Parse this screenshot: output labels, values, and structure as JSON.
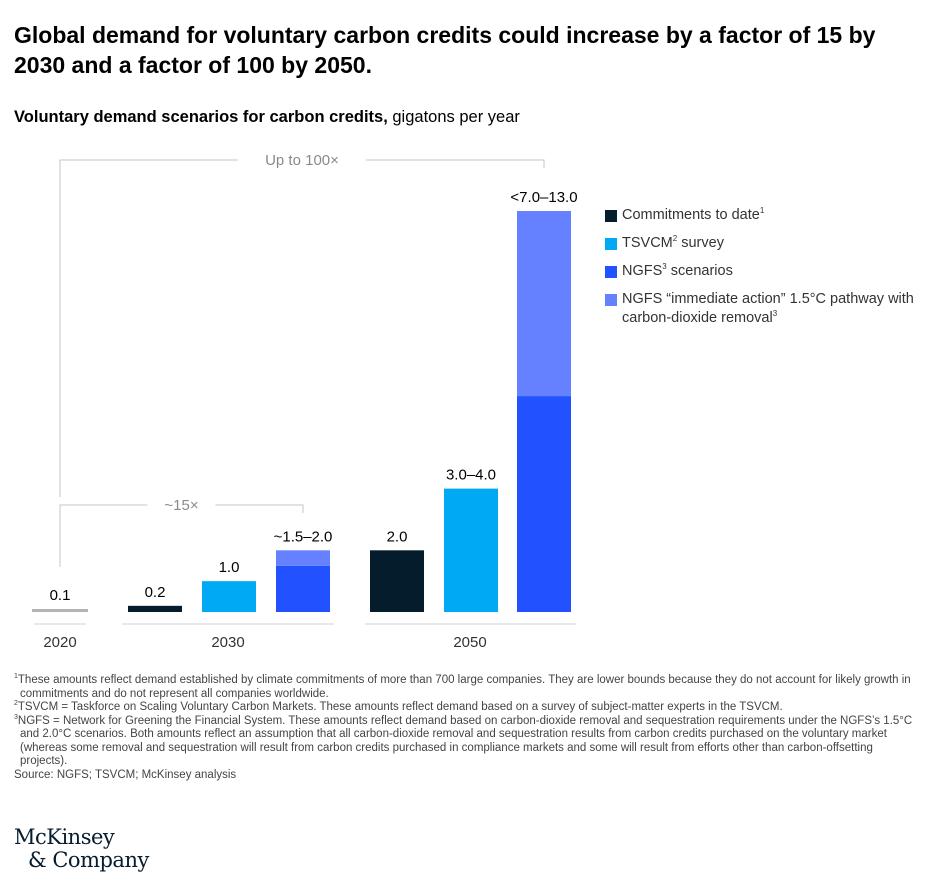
{
  "headline": "Global demand for voluntary carbon credits could increase by a factor of 15 by 2030 and a factor of 100 by 2050.",
  "subtitle": {
    "bold": "Voluntary demand scenarios for carbon credits,",
    "unit": " gigatons per year"
  },
  "chart_data": {
    "type": "bar",
    "stacked": true,
    "ylim": [
      0,
      13
    ],
    "categories": [
      "2020",
      "2030",
      "2050"
    ],
    "groups": [
      {
        "year": "2020",
        "bars": [
          {
            "series": "baseline",
            "label": "0.1",
            "segments": [
              {
                "series": "baseline",
                "value": 0.1
              }
            ]
          }
        ]
      },
      {
        "year": "2030",
        "bars": [
          {
            "series": "commitments",
            "label": "0.2",
            "segments": [
              {
                "series": "commitments",
                "value": 0.2
              }
            ]
          },
          {
            "series": "tsvcm",
            "label": "1.0",
            "segments": [
              {
                "series": "tsvcm",
                "value": 1.0
              }
            ]
          },
          {
            "series": "ngfs",
            "label": "~1.5–2.0",
            "segments": [
              {
                "series": "ngfs",
                "value": 1.5
              },
              {
                "series": "ngfs_immediate",
                "value": 0.5
              }
            ]
          }
        ]
      },
      {
        "year": "2050",
        "bars": [
          {
            "series": "commitments",
            "label": "2.0",
            "segments": [
              {
                "series": "commitments",
                "value": 2.0
              }
            ]
          },
          {
            "series": "tsvcm",
            "label": "3.0–4.0",
            "segments": [
              {
                "series": "tsvcm",
                "value": 4.0
              }
            ]
          },
          {
            "series": "ngfs",
            "label": "<7.0–13.0",
            "segments": [
              {
                "series": "ngfs",
                "value": 7.0
              },
              {
                "series": "ngfs_immediate",
                "value": 6.0
              }
            ]
          }
        ]
      }
    ],
    "colors": {
      "baseline": "#b3b3b3",
      "commitments": "#051c2c",
      "tsvcm": "#00a9f4",
      "ngfs": "#2251ff",
      "ngfs_immediate": "#6581ff"
    },
    "annotations": [
      {
        "label": "Up to 100×",
        "from": "2020",
        "to": "2050"
      },
      {
        "label": "~15×",
        "from": "2020",
        "to": "2030"
      }
    ],
    "legend": [
      {
        "series": "commitments",
        "text": "Commitments to date",
        "sup": "1"
      },
      {
        "series": "tsvcm",
        "text": "TSVCM",
        "sup": "2",
        "after": " survey"
      },
      {
        "series": "ngfs",
        "text": "NGFS",
        "sup": "3",
        "after": " scenarios"
      },
      {
        "series": "ngfs_immediate",
        "text": "NGFS “immediate action” 1.5°C pathway with carbon-dioxide removal",
        "sup": "3"
      }
    ]
  },
  "footnotes": [
    {
      "sup": "1",
      "text": "These amounts reflect demand established by climate commitments of more than 700 large companies. They are lower bounds because they do not account for likely growth in commitments and do not represent all companies worldwide."
    },
    {
      "sup": "2",
      "text": "TSVCM = Taskforce on Scaling Voluntary Carbon Markets. These amounts reflect demand based on a survey of subject-matter experts in the TSVCM."
    },
    {
      "sup": "3",
      "text": "NGFS = Network for Greening the Financial System. These amounts reflect demand based on carbon-dioxide removal and sequestration requirements under the NGFS’s 1.5°C and 2.0°C scenarios. Both amounts reflect an assumption that all carbon-dioxide removal and sequestration results from carbon credits purchased on the voluntary market (whereas some removal and sequestration will result from carbon credits purchased in compliance markets and some will result from efforts other than carbon-offsetting projects)."
    }
  ],
  "source": "Source: NGFS; TSVCM; McKinsey analysis",
  "logo": {
    "line1": "McKinsey",
    "line2": "& Company"
  }
}
